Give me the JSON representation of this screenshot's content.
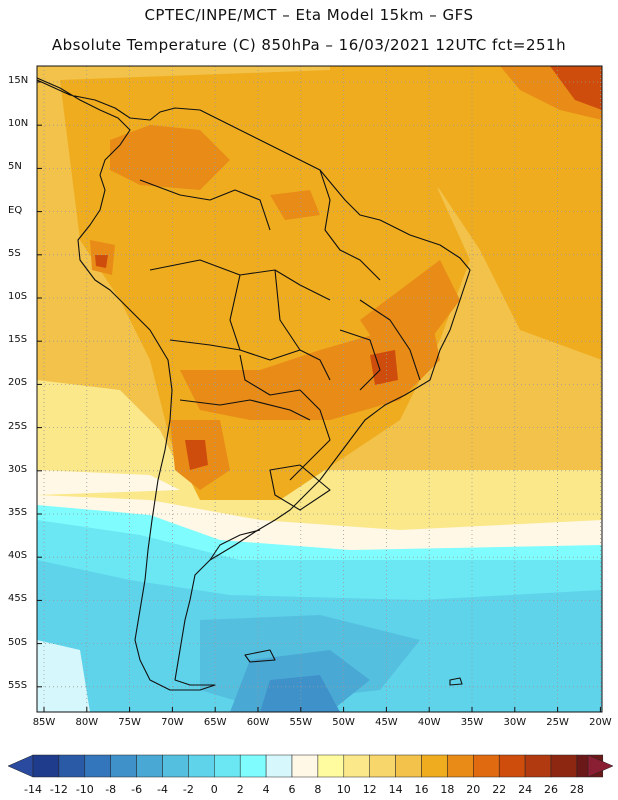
{
  "header": {
    "line1": "CPTEC/INPE/MCT –  Eta Model 15km – GFS",
    "line2": "Absolute Temperature (C) 850hPa – 16/03/2021 12UTC fct=251h"
  },
  "map": {
    "lat_labels": [
      "15N",
      "10N",
      "5N",
      "EQ",
      "5S",
      "10S",
      "15S",
      "20S",
      "25S",
      "30S",
      "35S",
      "40S",
      "45S",
      "50S",
      "55S"
    ],
    "lon_labels": [
      "85W",
      "80W",
      "75W",
      "70W",
      "65W",
      "60W",
      "55W",
      "50W",
      "45W",
      "40W",
      "35W",
      "30W",
      "25W",
      "20W"
    ]
  },
  "colorbar": {
    "labels": [
      "-14",
      "-12",
      "-10",
      "-8",
      "-6",
      "-4",
      "-2",
      "0",
      "2",
      "4",
      "6",
      "8",
      "10",
      "12",
      "14",
      "16",
      "18",
      "20",
      "22",
      "24",
      "26",
      "28"
    ],
    "colors": [
      "#1f3b8c",
      "#2a5aa6",
      "#3476bb",
      "#3f92c9",
      "#4aa9d4",
      "#55bfe0",
      "#5fd3ea",
      "#6ae7f3",
      "#7efcfe",
      "#d6f7fb",
      "#fff8e6",
      "#fffca0",
      "#fbe88a",
      "#f7d66b",
      "#f2c24a",
      "#efac1f",
      "#e88b17",
      "#e06a10",
      "#cf4d0c",
      "#b23a10",
      "#8d2712",
      "#6b1818"
    ],
    "under_color": "#2a4aa0",
    "over_color": "#8a1f33"
  }
}
